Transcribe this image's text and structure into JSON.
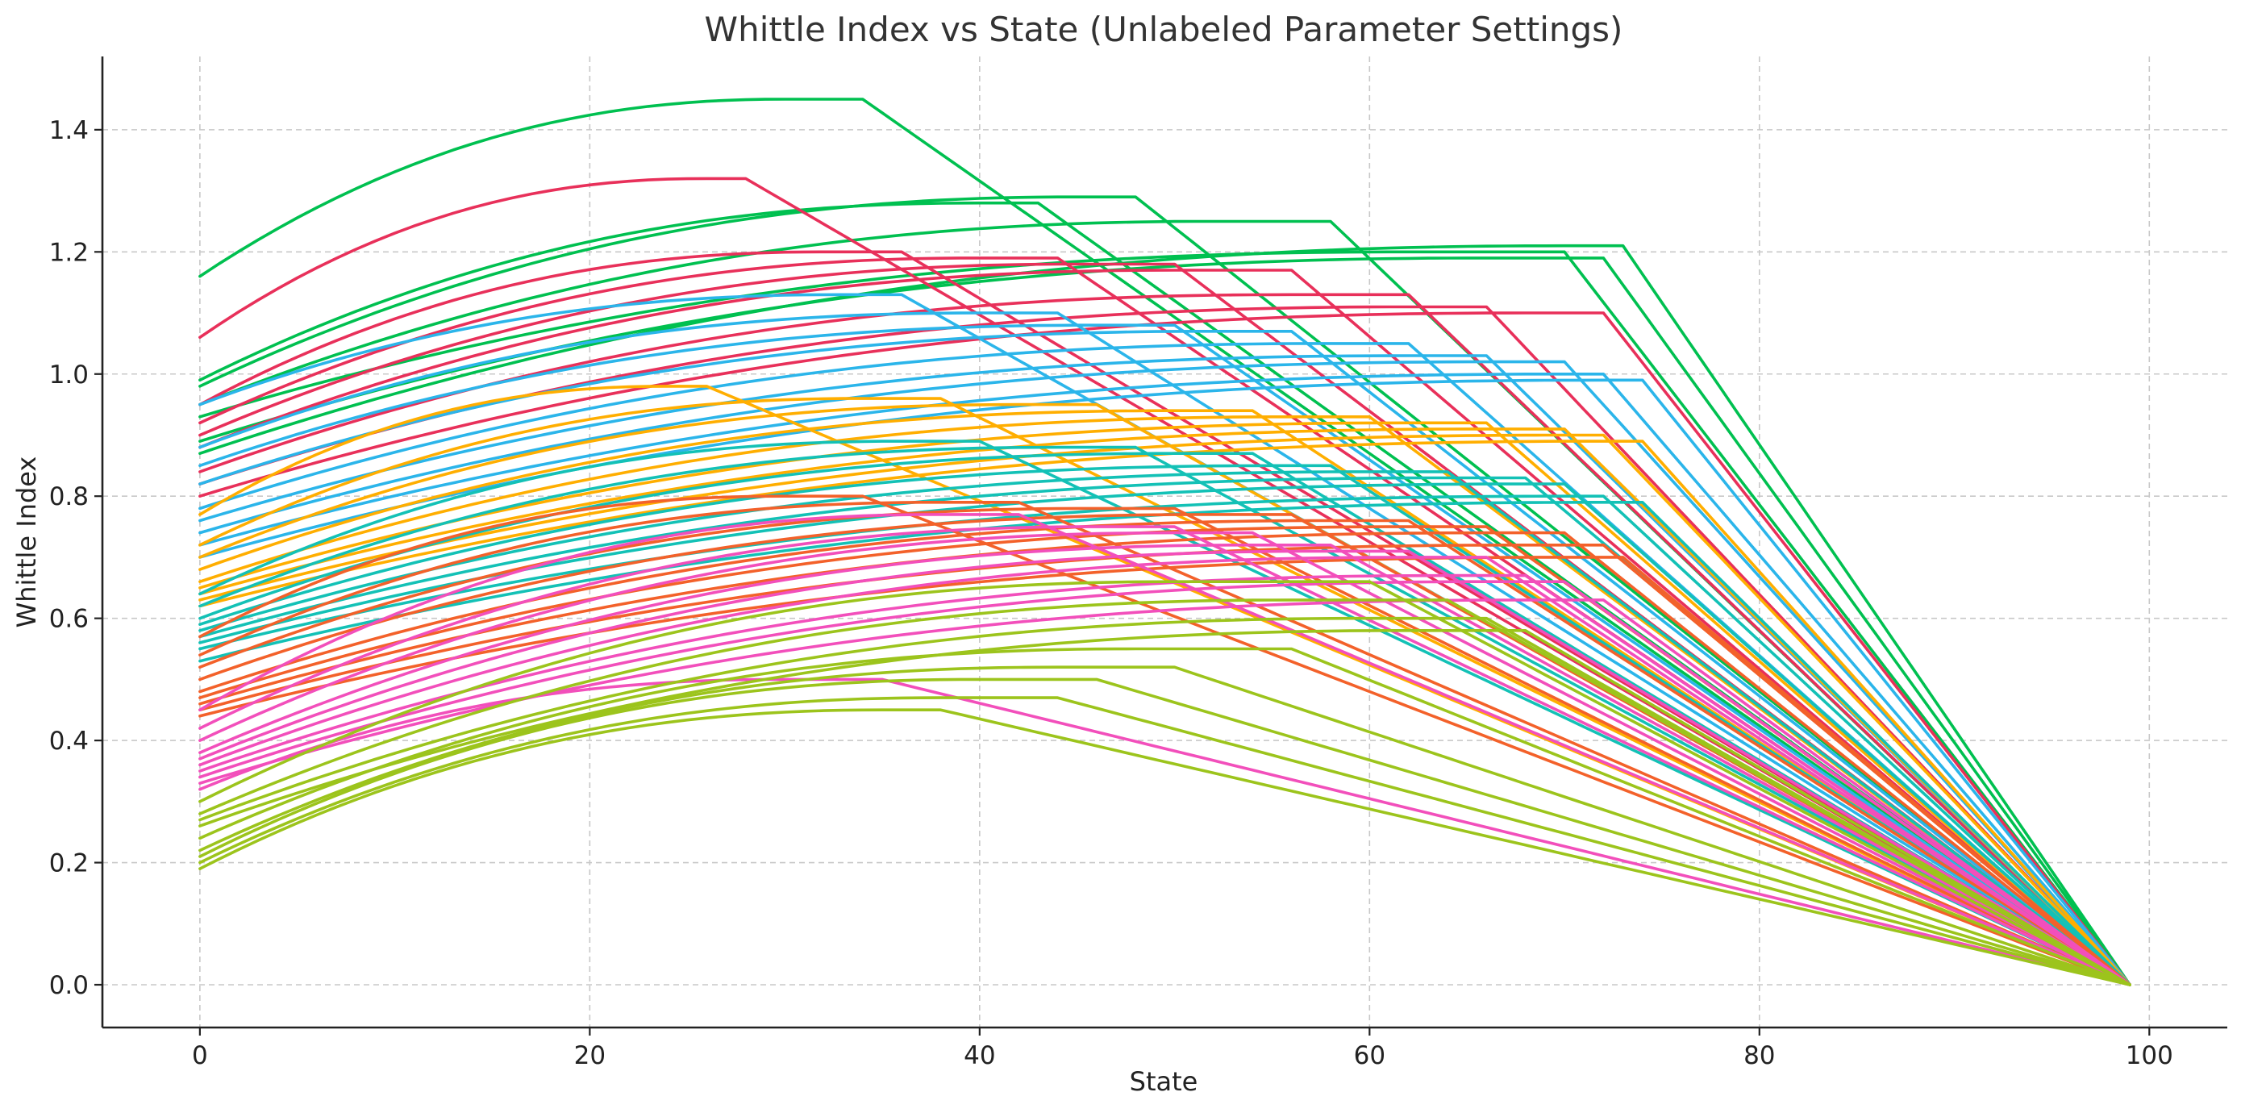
{
  "chart_data": {
    "type": "line",
    "title": "Whittle Index vs State (Unlabeled Parameter Settings)",
    "xlabel": "State",
    "ylabel": "Whittle Index",
    "xlim": [
      -5,
      104
    ],
    "ylim": [
      -0.07,
      1.52
    ],
    "x_ticks": [
      0,
      20,
      40,
      60,
      80,
      100
    ],
    "y_ticks": [
      0.0,
      0.2,
      0.4,
      0.6,
      0.8,
      1.0,
      1.2,
      1.4
    ],
    "y_tick_format": "0.0",
    "grid": true,
    "legend": "none",
    "x_end": 99,
    "shape": "each curve rises concavely from its value at state 0 to a peak, stays flat to a knee state, then falls nearly linearly to 0 at state 99",
    "series_groups": [
      {
        "color": "#00c050",
        "starts": [
          1.16,
          0.99,
          0.98,
          0.95,
          0.93,
          0.89,
          0.87
        ],
        "peaks": [
          1.45,
          1.28,
          1.29,
          1.25,
          1.2,
          1.19,
          1.21
        ],
        "peak_states": [
          30,
          40,
          45,
          52,
          62,
          66,
          70
        ],
        "knee_states": [
          34,
          43,
          48,
          58,
          70,
          72,
          73
        ]
      },
      {
        "color": "#e8305a",
        "starts": [
          1.06,
          0.95,
          0.92,
          0.9,
          0.88,
          0.84,
          0.82,
          0.8
        ],
        "peaks": [
          1.32,
          1.2,
          1.19,
          1.18,
          1.17,
          1.13,
          1.11,
          1.1
        ],
        "peak_states": [
          26,
          32,
          40,
          45,
          50,
          56,
          62,
          68
        ],
        "knee_states": [
          28,
          36,
          44,
          50,
          56,
          62,
          66,
          72
        ]
      },
      {
        "color": "#2bb5ea",
        "starts": [
          0.95,
          0.88,
          0.85,
          0.82,
          0.78,
          0.76,
          0.74,
          0.72,
          0.7
        ],
        "peaks": [
          1.13,
          1.1,
          1.08,
          1.07,
          1.05,
          1.03,
          1.02,
          1.0,
          0.99
        ],
        "peak_states": [
          33,
          40,
          46,
          52,
          58,
          62,
          66,
          70,
          72
        ],
        "knee_states": [
          36,
          44,
          50,
          56,
          62,
          66,
          70,
          72,
          74
        ]
      },
      {
        "color": "#ffae00",
        "starts": [
          0.77,
          0.72,
          0.7,
          0.68,
          0.66,
          0.65,
          0.64,
          0.63,
          0.62
        ],
        "peaks": [
          0.98,
          0.96,
          0.95,
          0.94,
          0.93,
          0.92,
          0.91,
          0.9,
          0.89
        ],
        "peak_states": [
          24,
          34,
          42,
          50,
          56,
          62,
          66,
          70,
          72
        ],
        "knee_states": [
          26,
          38,
          46,
          54,
          60,
          66,
          70,
          72,
          74
        ]
      },
      {
        "color": "#13c1b6",
        "starts": [
          0.64,
          0.62,
          0.6,
          0.59,
          0.58,
          0.57,
          0.56,
          0.55,
          0.53
        ],
        "peaks": [
          0.89,
          0.88,
          0.87,
          0.85,
          0.84,
          0.83,
          0.82,
          0.8,
          0.79
        ],
        "peak_states": [
          36,
          44,
          50,
          55,
          60,
          64,
          68,
          70,
          72
        ],
        "knee_states": [
          40,
          48,
          54,
          58,
          64,
          68,
          70,
          72,
          74
        ]
      },
      {
        "color": "#f3612a",
        "starts": [
          0.57,
          0.54,
          0.52,
          0.5,
          0.48,
          0.47,
          0.46,
          0.45,
          0.44
        ],
        "peaks": [
          0.8,
          0.79,
          0.78,
          0.77,
          0.76,
          0.75,
          0.74,
          0.72,
          0.7
        ],
        "peak_states": [
          30,
          38,
          46,
          52,
          58,
          62,
          66,
          68,
          70
        ],
        "knee_states": [
          34,
          42,
          50,
          56,
          62,
          66,
          70,
          72,
          73
        ]
      },
      {
        "color": "#f24fbb",
        "starts": [
          0.45,
          0.42,
          0.4,
          0.38,
          0.37,
          0.36,
          0.35,
          0.34,
          0.33,
          0.32
        ],
        "peaks": [
          0.77,
          0.75,
          0.74,
          0.72,
          0.71,
          0.7,
          0.67,
          0.66,
          0.63,
          0.5
        ],
        "peak_states": [
          38,
          46,
          50,
          54,
          58,
          62,
          64,
          66,
          68,
          30
        ],
        "knee_states": [
          42,
          50,
          54,
          58,
          62,
          66,
          68,
          70,
          72,
          35
        ]
      },
      {
        "color": "#9cc41c",
        "starts": [
          0.3,
          0.28,
          0.27,
          0.26,
          0.24,
          0.22,
          0.21,
          0.2,
          0.19
        ],
        "peaks": [
          0.66,
          0.63,
          0.6,
          0.58,
          0.55,
          0.52,
          0.5,
          0.47,
          0.45
        ],
        "peak_states": [
          50,
          56,
          60,
          62,
          48,
          44,
          40,
          38,
          35
        ],
        "knee_states": [
          60,
          64,
          66,
          68,
          56,
          50,
          46,
          44,
          38
        ]
      }
    ]
  }
}
